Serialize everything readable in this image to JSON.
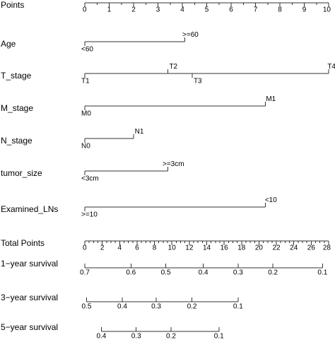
{
  "chart_data": {
    "type": "nomogram",
    "color": "#333333",
    "rows": [
      {
        "kind": "points_axis",
        "label": "Points",
        "min": 0,
        "max": 10,
        "ticks": [
          {
            "value": 0,
            "label": "0"
          },
          {
            "value": 1,
            "label": "1"
          },
          {
            "value": 2,
            "label": "2"
          },
          {
            "value": 3,
            "label": "3"
          },
          {
            "value": 4,
            "label": "4"
          },
          {
            "value": 5,
            "label": "5"
          },
          {
            "value": 6,
            "label": "6"
          },
          {
            "value": 7,
            "label": "7"
          },
          {
            "value": 8,
            "label": "8"
          },
          {
            "value": 9,
            "label": "9"
          },
          {
            "value": 10,
            "label": "10"
          }
        ],
        "minor_step": 0.5
      },
      {
        "kind": "variable",
        "label": "Age",
        "levels": [
          {
            "name": "<60",
            "points": 0,
            "side": "below"
          },
          {
            "name": ">=60",
            "points": 4.1,
            "side": "above"
          }
        ]
      },
      {
        "kind": "variable",
        "label": "T_stage",
        "levels": [
          {
            "name": "T1",
            "points": 0,
            "side": "below"
          },
          {
            "name": "T2",
            "points": 3.4,
            "side": "above"
          },
          {
            "name": "T3",
            "points": 4.4,
            "side": "below"
          },
          {
            "name": "T4",
            "points": 10,
            "side": "above"
          }
        ]
      },
      {
        "kind": "variable",
        "label": "M_stage",
        "levels": [
          {
            "name": "M0",
            "points": 0,
            "side": "below"
          },
          {
            "name": "M1",
            "points": 7.4,
            "side": "above"
          }
        ]
      },
      {
        "kind": "variable",
        "label": "N_stage",
        "levels": [
          {
            "name": "N0",
            "points": 0,
            "side": "below"
          },
          {
            "name": "N1",
            "points": 2,
            "side": "above"
          }
        ]
      },
      {
        "kind": "variable",
        "label": "tumor_size",
        "levels": [
          {
            "name": "<3cm",
            "points": 0,
            "side": "below"
          },
          {
            "name": ">=3cm",
            "points": 3.4,
            "side": "above"
          }
        ]
      },
      {
        "kind": "variable",
        "label": "Examined_LNs",
        "levels": [
          {
            "name": ">=10",
            "points": 0,
            "side": "below"
          },
          {
            "name": "<10",
            "points": 7.4,
            "side": "above"
          }
        ]
      },
      {
        "kind": "total_axis",
        "label": "Total Points",
        "min": 0,
        "max": 28,
        "ticks": [
          {
            "value": 0,
            "label": "0"
          },
          {
            "value": 2,
            "label": "2"
          },
          {
            "value": 4,
            "label": "4"
          },
          {
            "value": 6,
            "label": "6"
          },
          {
            "value": 8,
            "label": "8"
          },
          {
            "value": 10,
            "label": "10"
          },
          {
            "value": 12,
            "label": "12"
          },
          {
            "value": 14,
            "label": "14"
          },
          {
            "value": 16,
            "label": "16"
          },
          {
            "value": 18,
            "label": "18"
          },
          {
            "value": 20,
            "label": "20"
          },
          {
            "value": 22,
            "label": "22"
          },
          {
            "value": 24,
            "label": "24"
          },
          {
            "value": 26,
            "label": "26"
          },
          {
            "value": 28,
            "label": "28"
          }
        ],
        "minor_step": 0.5
      },
      {
        "kind": "survival_axis",
        "label": "1−year survival",
        "ticks": [
          {
            "total_points": 0,
            "label": "0.7"
          },
          {
            "total_points": 5.3,
            "label": "0.6"
          },
          {
            "total_points": 9.3,
            "label": "0.5"
          },
          {
            "total_points": 13.6,
            "label": "0.4"
          },
          {
            "total_points": 17.6,
            "label": "0.3"
          },
          {
            "total_points": 21.6,
            "label": "0.2"
          },
          {
            "total_points": 27.3,
            "label": "0.1"
          }
        ]
      },
      {
        "kind": "survival_axis",
        "label": "3−year survival",
        "ticks": [
          {
            "total_points": 0.2,
            "label": "0.5"
          },
          {
            "total_points": 4.3,
            "label": "0.4"
          },
          {
            "total_points": 8.2,
            "label": "0.3"
          },
          {
            "total_points": 12.3,
            "label": "0.2"
          },
          {
            "total_points": 17.6,
            "label": "0.1"
          }
        ]
      },
      {
        "kind": "survival_axis",
        "label": "5−year survival",
        "ticks": [
          {
            "total_points": 1.9,
            "label": "0.4"
          },
          {
            "total_points": 5.9,
            "label": "0.3"
          },
          {
            "total_points": 9.9,
            "label": "0.2"
          },
          {
            "total_points": 15.4,
            "label": "0.1"
          }
        ]
      }
    ]
  }
}
